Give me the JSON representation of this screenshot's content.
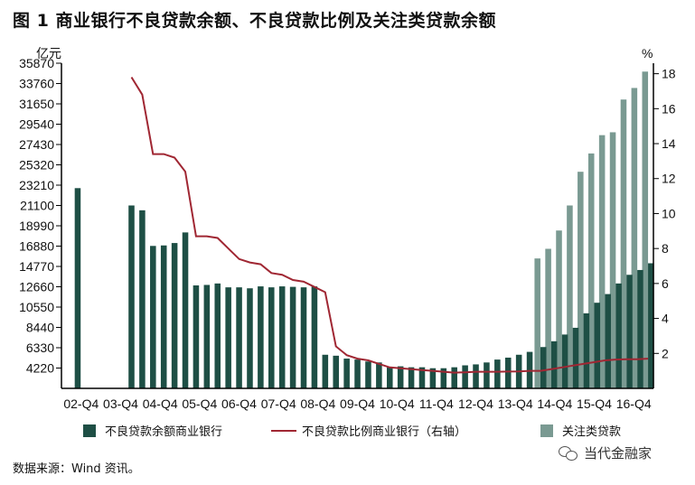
{
  "title": "图 1  商业银行不良贷款余额、不良贷款比例及关注类贷款余额",
  "source_note": "数据来源：Wind 资讯。",
  "watermark": "当代金融家",
  "colors": {
    "npl_bar": "#1e4f45",
    "watch_bar": "#7a9a92",
    "ratio_line": "#a02733",
    "axis": "#000000"
  },
  "chart_data": {
    "type": "bar",
    "left_unit": "亿元",
    "right_unit": "%",
    "left_ticks": [
      "35870",
      "33760",
      "31650",
      "29540",
      "27430",
      "25320",
      "23210",
      "21100",
      "18990",
      "16880",
      "14770",
      "12660",
      "10550",
      "8440",
      "6330",
      "4220"
    ],
    "right_ticks": [
      "18",
      "16",
      "14",
      "12",
      "10",
      "8",
      "6",
      "4",
      "2"
    ],
    "x_labels": [
      "02-Q4",
      "03-Q4",
      "04-Q4",
      "05-Q4",
      "06-Q4",
      "07-Q4",
      "08-Q4",
      "09-Q4",
      "10-Q4",
      "11-Q4",
      "12-Q4",
      "13-Q4",
      "14-Q4",
      "15-Q4",
      "16-Q4"
    ],
    "ylim_left": [
      2110,
      35870
    ],
    "ylim_right": [
      0,
      18.6
    ],
    "series": [
      {
        "name": "不良贷款余额商业银行",
        "kind": "bar",
        "axis": "left",
        "values": [
          22900,
          null,
          null,
          null,
          null,
          21100,
          20600,
          16900,
          16950,
          17200,
          18300,
          12800,
          12850,
          13000,
          12600,
          12600,
          12500,
          12700,
          12600,
          12700,
          12650,
          12600,
          12700,
          5600,
          5500,
          5200,
          5100,
          4900,
          4800,
          4300,
          4400,
          4300,
          4300,
          4200,
          4200,
          4300,
          4500,
          4600,
          4800,
          5100,
          5300,
          5600,
          5900,
          6400,
          7000,
          7700,
          8400,
          9900,
          11000,
          11900,
          13000,
          13900,
          14400,
          15100
        ]
      },
      {
        "name": "关注类贷款",
        "kind": "bar",
        "axis": "left",
        "values": [
          null,
          null,
          null,
          null,
          null,
          null,
          null,
          null,
          null,
          null,
          null,
          null,
          null,
          null,
          null,
          null,
          null,
          null,
          null,
          null,
          null,
          null,
          null,
          null,
          null,
          null,
          null,
          null,
          null,
          null,
          null,
          null,
          null,
          null,
          null,
          null,
          null,
          null,
          null,
          null,
          null,
          null,
          null,
          15600,
          16600,
          18500,
          21100,
          24600,
          26500,
          28400,
          28700,
          32100,
          33300,
          35000
        ]
      },
      {
        "name": "不良贷款比例商业银行（右轴）",
        "kind": "line",
        "axis": "right",
        "values": [
          null,
          null,
          null,
          null,
          null,
          17.8,
          16.8,
          13.4,
          13.4,
          13.2,
          12.4,
          8.7,
          8.7,
          8.6,
          8.0,
          7.4,
          7.2,
          7.1,
          6.6,
          6.5,
          6.2,
          6.1,
          5.8,
          5.5,
          2.4,
          1.9,
          1.7,
          1.6,
          1.4,
          1.2,
          1.15,
          1.1,
          1.05,
          1.0,
          0.95,
          0.9,
          0.92,
          0.95,
          0.95,
          0.95,
          0.96,
          0.97,
          1.0,
          1.0,
          1.1,
          1.2,
          1.3,
          1.4,
          1.5,
          1.6,
          1.65,
          1.67,
          1.67,
          1.7
        ]
      }
    ],
    "legend_placement": "bottom"
  }
}
